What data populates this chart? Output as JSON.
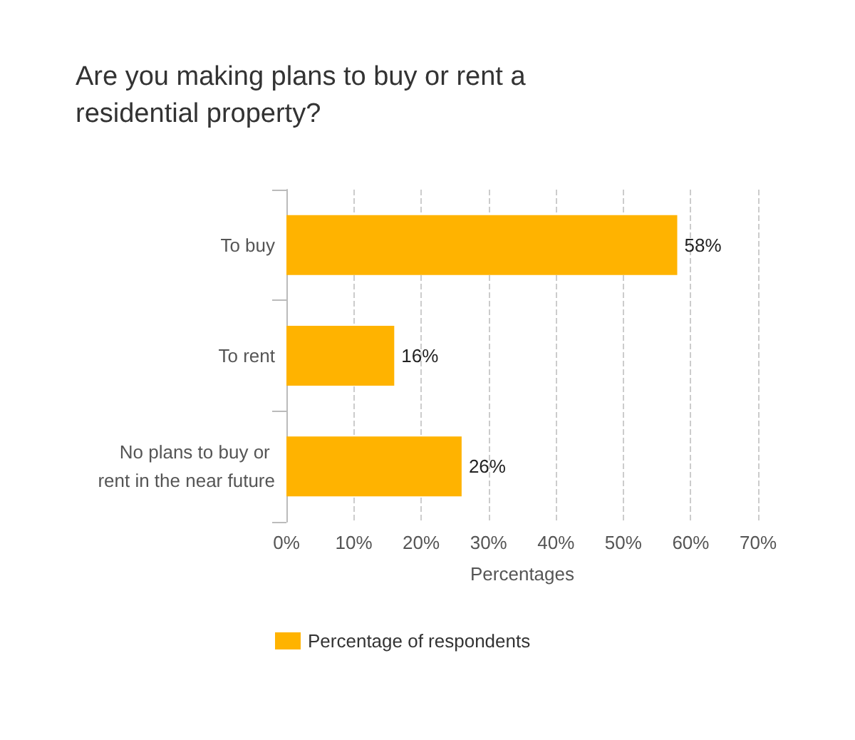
{
  "chart_data": {
    "type": "bar",
    "orientation": "horizontal",
    "title": "Are you making plans to buy or rent a residential property?",
    "categories": [
      "To buy",
      "To rent",
      "No plans to buy or rent in the near future"
    ],
    "series": [
      {
        "name": "Percentage of respondents",
        "color": "#ffb300",
        "values": [
          58,
          16,
          26
        ],
        "value_labels": [
          "58%",
          "16%",
          "26%"
        ]
      }
    ],
    "xlabel": "Percentages",
    "xlim": [
      0,
      70
    ],
    "xticks": [
      {
        "value": 0,
        "label": "0%"
      },
      {
        "value": 10,
        "label": "10%"
      },
      {
        "value": 20,
        "label": "20%"
      },
      {
        "value": 30,
        "label": "30%"
      },
      {
        "value": 40,
        "label": "40%"
      },
      {
        "value": 50,
        "label": "50%"
      },
      {
        "value": 60,
        "label": "60%"
      },
      {
        "value": 70,
        "label": "70%"
      }
    ],
    "grid": "x",
    "legend": "bottom"
  }
}
